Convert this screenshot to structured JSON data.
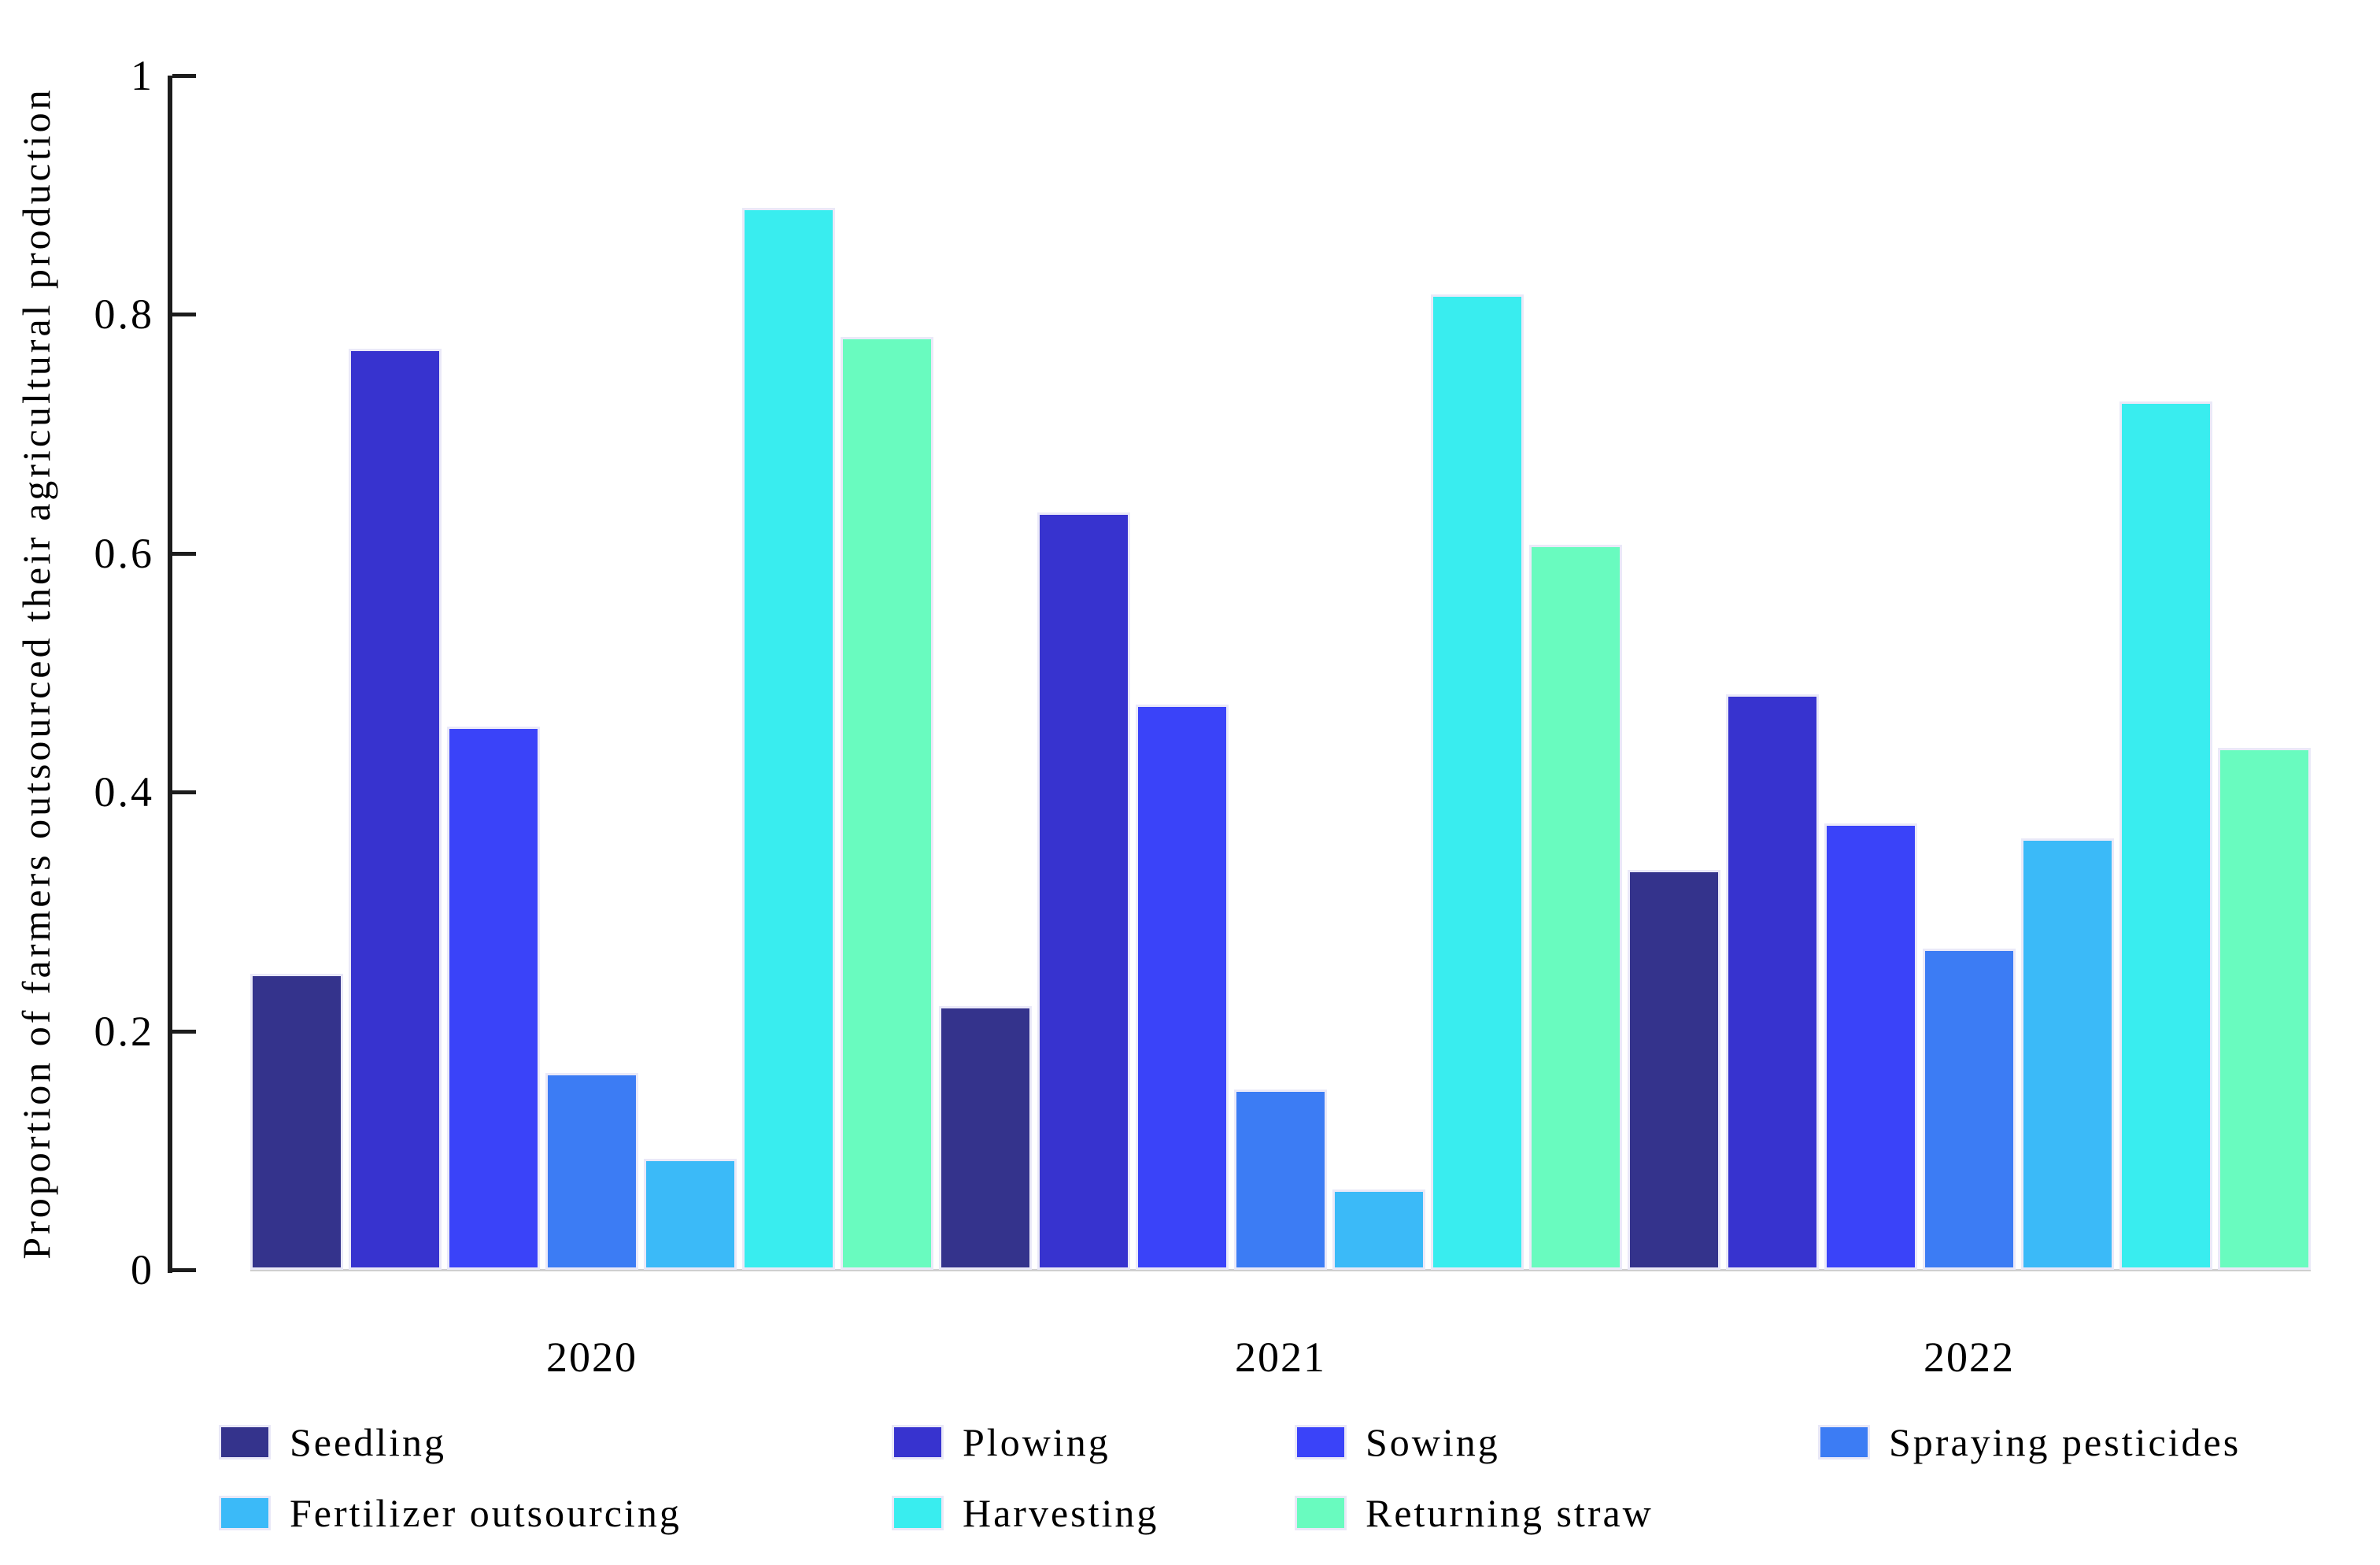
{
  "chart_data": {
    "type": "bar",
    "title": "",
    "xlabel": "",
    "ylabel": "Proportion of farmers outsourced their agricultural production",
    "categories": [
      "2020",
      "2021",
      "2022"
    ],
    "series": [
      {
        "name": "Seedling",
        "color": "#34338C",
        "values": [
          0.248,
          0.221,
          0.335
        ]
      },
      {
        "name": "Plowing",
        "color": "#3733CF",
        "values": [
          0.771,
          0.634,
          0.482
        ]
      },
      {
        "name": "Sowing",
        "color": "#3A43F9",
        "values": [
          0.455,
          0.473,
          0.374
        ]
      },
      {
        "name": "Spraying pesticides",
        "color": "#3C7CF4",
        "values": [
          0.165,
          0.151,
          0.269
        ]
      },
      {
        "name": "Fertilizer outsourcing",
        "color": "#3BBAF8",
        "values": [
          0.093,
          0.067,
          0.361
        ]
      },
      {
        "name": "Harvesting",
        "color": "#39EDEF",
        "values": [
          0.889,
          0.817,
          0.727
        ]
      },
      {
        "name": "Returning straw",
        "color": "#69FBBF",
        "values": [
          0.781,
          0.607,
          0.437
        ]
      }
    ],
    "ylim": [
      0,
      1
    ],
    "yticks": [
      {
        "value": 0,
        "label": "0"
      },
      {
        "value": 0.2,
        "label": "0.2"
      },
      {
        "value": 0.4,
        "label": "0.4"
      },
      {
        "value": 0.6,
        "label": "0.6"
      },
      {
        "value": 0.8,
        "label": "0.8"
      },
      {
        "value": 1,
        "label": "1"
      }
    ],
    "grid": false,
    "legend_position": "bottom",
    "legend_rows": [
      [
        "Seedling",
        "Plowing",
        "Sowing",
        "Spraying pesticides"
      ],
      [
        "Fertilizer outsourcing",
        "Harvesting",
        "Returning straw"
      ]
    ],
    "colors": {
      "bar_edge": "#EAE9F8",
      "axis": "#1C1C1C",
      "text": "#000000",
      "baseline": "#CFCFCF",
      "background": "#FFFFFF"
    }
  }
}
